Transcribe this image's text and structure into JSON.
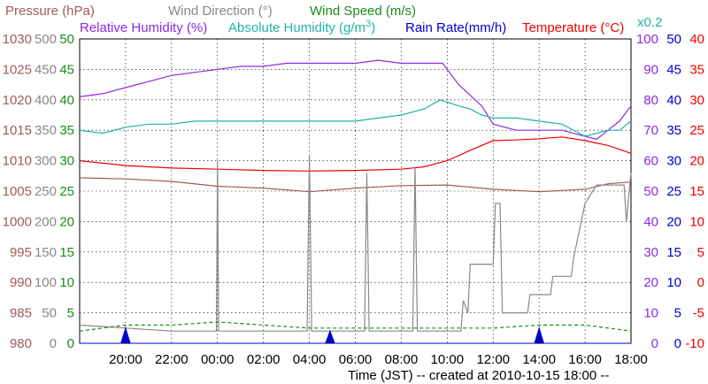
{
  "chart_data": {
    "type": "line",
    "legend": [
      {
        "key": "pressure",
        "label": "Pressure (hPa)",
        "color": "#a05a5a"
      },
      {
        "key": "wind_direction",
        "label": "Wind Direction (°)",
        "color": "#888888"
      },
      {
        "key": "wind_speed",
        "label": "Wind Speed (m/s)",
        "color": "#1a8a1a"
      },
      {
        "key": "relative_humidity",
        "label": "Relative Humidity (%)",
        "color": "#8a2be2"
      },
      {
        "key": "absolute_humidity",
        "label": "Absolute Humidity (g/m",
        "sup": "3",
        "label_end": ")",
        "color": "#20b2aa"
      },
      {
        "key": "rain_rate",
        "label": "Rain Rate(mm/h)",
        "color": "#0000cc"
      },
      {
        "key": "temperature",
        "label": "Temperature (°C)",
        "color": "#ee0000"
      },
      {
        "key": "rain_scale",
        "label": "x0.2",
        "color": "#20b2aa"
      }
    ],
    "xlabel": "Time (JST) -- created at 2010-10-15 18:00 --",
    "x_range": [
      -24,
      0
    ],
    "x_ticks": [
      {
        "h": -22,
        "label": "20:00"
      },
      {
        "h": -20,
        "label": "22:00"
      },
      {
        "h": -18,
        "label": "00:00"
      },
      {
        "h": -16,
        "label": "02:00"
      },
      {
        "h": -14,
        "label": "04:00"
      },
      {
        "h": -12,
        "label": "06:00"
      },
      {
        "h": -10,
        "label": "08:00"
      },
      {
        "h": -8,
        "label": "10:00"
      },
      {
        "h": -6,
        "label": "12:00"
      },
      {
        "h": -4,
        "label": "14:00"
      },
      {
        "h": -2,
        "label": "16:00"
      },
      {
        "h": 0,
        "label": "18:00"
      }
    ],
    "axes": {
      "pressure": {
        "range": [
          980,
          1030
        ],
        "ticks": [
          "980",
          "985",
          "990",
          "995",
          "1000",
          "1005",
          "1010",
          "1015",
          "1020",
          "1025",
          "1030"
        ],
        "color": "#a05a5a"
      },
      "wind_direction": {
        "range": [
          0,
          500
        ],
        "ticks": [
          "0",
          "50",
          "100",
          "150",
          "200",
          "250",
          "300",
          "350",
          "400",
          "450",
          "500"
        ],
        "color": "#888888"
      },
      "wind_speed": {
        "range": [
          0,
          50
        ],
        "ticks": [
          "0",
          "5",
          "10",
          "15",
          "20",
          "25",
          "30",
          "35",
          "40",
          "45",
          "50"
        ],
        "color": "#1a8a1a"
      },
      "relative_humidity": {
        "range": [
          0,
          100
        ],
        "ticks": [
          "0",
          "10",
          "20",
          "30",
          "40",
          "50",
          "60",
          "70",
          "80",
          "90",
          "100"
        ],
        "color": "#8a2be2"
      },
      "rain_rate": {
        "range": [
          0,
          50
        ],
        "ticks": [
          "0",
          "5",
          "10",
          "15",
          "20",
          "25",
          "30",
          "35",
          "40",
          "45",
          "50"
        ],
        "color": "#0000cc"
      },
      "temperature": {
        "range": [
          -10,
          40
        ],
        "ticks": [
          "-10",
          "-5",
          "0",
          "5",
          "10",
          "15",
          "20",
          "25",
          "30",
          "35",
          "40"
        ],
        "color": "#ee0000"
      }
    },
    "series": [
      {
        "name": "Pressure (hPa)",
        "axis": "pressure",
        "color": "#a05a5a",
        "points": [
          [
            -24,
            1007.2
          ],
          [
            -22,
            1007
          ],
          [
            -20,
            1006.6
          ],
          [
            -18,
            1005.8
          ],
          [
            -16,
            1005.5
          ],
          [
            -14,
            1004.9
          ],
          [
            -12,
            1005.5
          ],
          [
            -10,
            1005.9
          ],
          [
            -8,
            1006
          ],
          [
            -6,
            1005.3
          ],
          [
            -4,
            1004.9
          ],
          [
            -2,
            1005.3
          ],
          [
            -1,
            1006.2
          ],
          [
            0,
            1006.5
          ]
        ]
      },
      {
        "name": "Relative Humidity (%)",
        "axis": "relative_humidity",
        "color": "#8a2be2",
        "points": [
          [
            -24,
            81
          ],
          [
            -23,
            82
          ],
          [
            -22,
            84
          ],
          [
            -21,
            86
          ],
          [
            -20,
            88
          ],
          [
            -19,
            89
          ],
          [
            -18,
            90
          ],
          [
            -17,
            91
          ],
          [
            -16,
            91
          ],
          [
            -15,
            92
          ],
          [
            -14,
            92
          ],
          [
            -13,
            92
          ],
          [
            -12,
            92
          ],
          [
            -11,
            93
          ],
          [
            -10,
            92
          ],
          [
            -9,
            92
          ],
          [
            -8.2,
            92
          ],
          [
            -7.5,
            85
          ],
          [
            -6.5,
            78
          ],
          [
            -6,
            72
          ],
          [
            -5,
            70
          ],
          [
            -4,
            70
          ],
          [
            -3,
            70
          ],
          [
            -2,
            68
          ],
          [
            -1.5,
            67
          ],
          [
            -1,
            70
          ],
          [
            -0.5,
            73
          ],
          [
            0,
            78
          ]
        ]
      },
      {
        "name": "Absolute Humidity (g/m3)",
        "axis": "relative_humidity",
        "color": "#20b2aa",
        "points": [
          [
            -24,
            70
          ],
          [
            -23,
            69
          ],
          [
            -22,
            71
          ],
          [
            -21,
            72
          ],
          [
            -20,
            72
          ],
          [
            -19,
            73
          ],
          [
            -18,
            73
          ],
          [
            -17,
            73
          ],
          [
            -16,
            73
          ],
          [
            -15,
            73
          ],
          [
            -14,
            73
          ],
          [
            -13,
            73
          ],
          [
            -12,
            73
          ],
          [
            -11,
            74
          ],
          [
            -10,
            75
          ],
          [
            -9,
            77
          ],
          [
            -8.3,
            80
          ],
          [
            -7.5,
            78
          ],
          [
            -7,
            77
          ],
          [
            -6.5,
            75
          ],
          [
            -6,
            74
          ],
          [
            -5,
            74
          ],
          [
            -4,
            73
          ],
          [
            -3,
            72
          ],
          [
            -2,
            68
          ],
          [
            -1,
            70
          ],
          [
            -0.5,
            70
          ],
          [
            0,
            73
          ]
        ]
      },
      {
        "name": "Temperature (°C)",
        "axis": "temperature",
        "color": "#ee0000",
        "points": [
          [
            -24,
            20
          ],
          [
            -22,
            19.2
          ],
          [
            -20,
            18.8
          ],
          [
            -18,
            18.6
          ],
          [
            -16,
            18.4
          ],
          [
            -14,
            18.3
          ],
          [
            -12,
            18.4
          ],
          [
            -10,
            18.6
          ],
          [
            -9,
            19
          ],
          [
            -8,
            20
          ],
          [
            -7,
            21.7
          ],
          [
            -6,
            23.3
          ],
          [
            -5,
            23.4
          ],
          [
            -4,
            23.6
          ],
          [
            -3,
            23.9
          ],
          [
            -2,
            23.3
          ],
          [
            -1,
            22.5
          ],
          [
            0,
            21.2
          ]
        ]
      },
      {
        "name": "Wind Direction (°)",
        "axis": "wind_direction",
        "color": "#888888",
        "points": [
          [
            -24,
            30
          ],
          [
            -22,
            25
          ],
          [
            -20,
            20
          ],
          [
            -18.05,
            20
          ],
          [
            -18,
            300
          ],
          [
            -17.95,
            20
          ],
          [
            -14.1,
            20
          ],
          [
            -14,
            310
          ],
          [
            -13.9,
            20
          ],
          [
            -11.6,
            20
          ],
          [
            -11.5,
            280
          ],
          [
            -11.4,
            20
          ],
          [
            -9.5,
            20
          ],
          [
            -9.4,
            290
          ],
          [
            -9.3,
            20
          ],
          [
            -7.4,
            20
          ],
          [
            -7.3,
            70
          ],
          [
            -7.1,
            50
          ],
          [
            -7,
            130
          ],
          [
            -6,
            130
          ],
          [
            -5.9,
            230
          ],
          [
            -5.7,
            230
          ],
          [
            -5.6,
            50
          ],
          [
            -4.5,
            50
          ],
          [
            -4.4,
            80
          ],
          [
            -3.5,
            80
          ],
          [
            -3.4,
            110
          ],
          [
            -2.6,
            110
          ],
          [
            -2.5,
            140
          ],
          [
            -2,
            230
          ],
          [
            -1.5,
            260
          ],
          [
            -1,
            260
          ],
          [
            -0.5,
            260
          ],
          [
            -0.3,
            260
          ],
          [
            -0.2,
            200
          ],
          [
            0,
            280
          ]
        ]
      },
      {
        "name": "Wind Speed (m/s)",
        "axis": "wind_speed",
        "color": "#1a8a1a",
        "points": [
          [
            -24,
            2
          ],
          [
            -22,
            3
          ],
          [
            -20,
            3
          ],
          [
            -18,
            3.5
          ],
          [
            -16,
            3
          ],
          [
            -14,
            2.5
          ],
          [
            -12,
            2.5
          ],
          [
            -10,
            2.5
          ],
          [
            -8,
            2.5
          ],
          [
            -6,
            2.5
          ],
          [
            -4,
            3
          ],
          [
            -2,
            3
          ],
          [
            0,
            2
          ]
        ]
      },
      {
        "name": "Rain Rate(mm/h)",
        "axis": "rain_rate",
        "color": "#0000cc",
        "points": [
          [
            -24,
            0
          ],
          [
            -22.2,
            0
          ],
          [
            -22,
            2.5
          ],
          [
            -21.8,
            0
          ],
          [
            -13.3,
            0
          ],
          [
            -13.1,
            2
          ],
          [
            -12.9,
            0
          ],
          [
            -4.2,
            0
          ],
          [
            -4,
            2.5
          ],
          [
            -3.8,
            0
          ],
          [
            0,
            0
          ]
        ]
      }
    ]
  }
}
